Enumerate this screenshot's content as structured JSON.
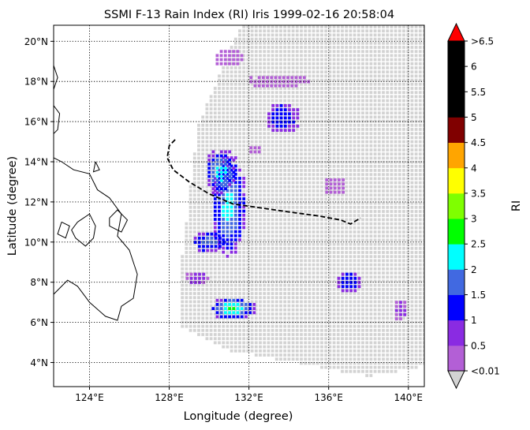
{
  "title": "SSMI F-13 Rain Index (RI) Iris 1999-02-16 20:58:04",
  "xlabel": "Longitude (degree)",
  "ylabel": "Latitude (degree)",
  "x_ticks": [
    {
      "v": 124,
      "label": "124°E"
    },
    {
      "v": 128,
      "label": "128°E"
    },
    {
      "v": 132,
      "label": "132°E"
    },
    {
      "v": 136,
      "label": "136°E"
    },
    {
      "v": 140,
      "label": "140°E"
    }
  ],
  "y_ticks": [
    {
      "v": 4,
      "label": "4°N"
    },
    {
      "v": 6,
      "label": "6°N"
    },
    {
      "v": 8,
      "label": "8°N"
    },
    {
      "v": 10,
      "label": "10°N"
    },
    {
      "v": 12,
      "label": "12°N"
    },
    {
      "v": 14,
      "label": "14°N"
    },
    {
      "v": 16,
      "label": "16°N"
    },
    {
      "v": 18,
      "label": "18°N"
    },
    {
      "v": 20,
      "label": "20°N"
    }
  ],
  "colorbar": {
    "label": "RI",
    "under_color": "#d3d3d3",
    "over_color": "#ff0000",
    "bins": [
      {
        "color": "#b35fd6"
      },
      {
        "color": "#8a2be2"
      },
      {
        "color": "#0000ff"
      },
      {
        "color": "#4169e1"
      },
      {
        "color": "#00ffff"
      },
      {
        "color": "#00ff00"
      },
      {
        "color": "#7fff00"
      },
      {
        "color": "#ffff00"
      },
      {
        "color": "#ffa500"
      },
      {
        "color": "#800000"
      },
      {
        "color": "#000000"
      },
      {
        "color": "#000000"
      },
      {
        "color": "#000000"
      }
    ],
    "tick_labels": [
      "<0.01",
      "0.5",
      "1",
      "1.5",
      "2",
      "2.5",
      "3",
      "3.5",
      "4",
      "4.5",
      "5",
      "5.5",
      "6",
      ">6.5"
    ]
  },
  "chart_data": {
    "type": "heatmap",
    "title": "SSMI F-13 Rain Index (RI) Iris 1999-02-16 20:58:04",
    "xlabel": "Longitude (degree)",
    "ylabel": "Latitude (degree)",
    "xlim": [
      122.2,
      140.8
    ],
    "ylim": [
      2.8,
      20.8
    ],
    "grid": true,
    "swath": {
      "fill_color": "#d3d3d3",
      "corners": [
        [
          132.0,
          20.8
        ],
        [
          140.8,
          20.8
        ],
        [
          140.8,
          3.8
        ],
        [
          138.0,
          3.3
        ],
        [
          131.0,
          4.6
        ],
        [
          128.6,
          5.8
        ],
        [
          128.5,
          7.9
        ],
        [
          129.2,
          14.0
        ],
        [
          129.5,
          16.0
        ],
        [
          131.6,
          20.8
        ]
      ]
    },
    "rain_cells": [
      {
        "lon": 131.2,
        "lat": 6.7,
        "rx": 1.2,
        "ry": 0.6,
        "levels": [
          "#8a2be2",
          "#0000ff",
          "#4169e1",
          "#00ffff",
          "#00ff00"
        ]
      },
      {
        "lon": 131.0,
        "lat": 11.8,
        "rx": 0.9,
        "ry": 2.6,
        "levels": [
          "#8a2be2",
          "#0000ff",
          "#4169e1",
          "#00ffff"
        ]
      },
      {
        "lon": 130.6,
        "lat": 13.5,
        "rx": 0.8,
        "ry": 1.2,
        "levels": [
          "#8a2be2",
          "#0000ff",
          "#4169e1",
          "#00ffff"
        ]
      },
      {
        "lon": 130.0,
        "lat": 10.0,
        "rx": 0.9,
        "ry": 0.6,
        "levels": [
          "#8a2be2",
          "#0000ff",
          "#4169e1"
        ]
      },
      {
        "lon": 133.7,
        "lat": 16.2,
        "rx": 0.9,
        "ry": 0.8,
        "levels": [
          "#8a2be2",
          "#0000ff"
        ]
      },
      {
        "lon": 137.0,
        "lat": 8.0,
        "rx": 0.7,
        "ry": 0.6,
        "levels": [
          "#8a2be2",
          "#0000ff"
        ]
      },
      {
        "lon": 129.4,
        "lat": 8.2,
        "rx": 0.7,
        "ry": 0.4,
        "levels": [
          "#b35fd6",
          "#8a2be2"
        ]
      },
      {
        "lon": 133.5,
        "lat": 18.0,
        "rx": 1.6,
        "ry": 0.4,
        "levels": [
          "#b35fd6"
        ]
      },
      {
        "lon": 131.0,
        "lat": 19.2,
        "rx": 0.8,
        "ry": 0.5,
        "levels": [
          "#b35fd6"
        ]
      },
      {
        "lon": 139.6,
        "lat": 6.6,
        "rx": 0.4,
        "ry": 0.6,
        "levels": [
          "#b35fd6",
          "#8a2be2"
        ]
      },
      {
        "lon": 136.3,
        "lat": 12.8,
        "rx": 0.6,
        "ry": 0.5,
        "levels": [
          "#b35fd6"
        ]
      },
      {
        "lon": 132.3,
        "lat": 14.6,
        "rx": 0.4,
        "ry": 0.3,
        "levels": [
          "#b35fd6"
        ]
      }
    ],
    "track": [
      [
        128.3,
        15.1
      ],
      [
        128.0,
        14.8
      ],
      [
        127.9,
        14.2
      ],
      [
        128.2,
        13.6
      ],
      [
        129.0,
        13.0
      ],
      [
        130.0,
        12.4
      ],
      [
        131.2,
        11.9
      ],
      [
        132.6,
        11.7
      ],
      [
        134.0,
        11.5
      ],
      [
        135.5,
        11.3
      ],
      [
        136.6,
        11.1
      ],
      [
        137.1,
        10.9
      ],
      [
        137.6,
        11.2
      ]
    ],
    "coastline_segments": [
      [
        [
          122.2,
          14.2
        ],
        [
          122.6,
          14.0
        ],
        [
          123.2,
          13.6
        ],
        [
          124.0,
          13.4
        ],
        [
          124.4,
          12.6
        ],
        [
          125.0,
          12.2
        ],
        [
          125.6,
          11.4
        ],
        [
          125.4,
          10.3
        ],
        [
          126.0,
          9.6
        ],
        [
          126.4,
          8.4
        ],
        [
          126.2,
          7.2
        ],
        [
          125.6,
          6.8
        ],
        [
          125.4,
          6.1
        ],
        [
          124.8,
          6.3
        ],
        [
          124.0,
          7.0
        ],
        [
          123.4,
          7.8
        ],
        [
          122.9,
          8.1
        ],
        [
          122.2,
          7.4
        ]
      ],
      [
        [
          123.4,
          11.0
        ],
        [
          124.0,
          11.4
        ],
        [
          124.3,
          10.8
        ],
        [
          124.2,
          10.2
        ],
        [
          123.8,
          9.8
        ],
        [
          123.3,
          10.2
        ],
        [
          123.1,
          10.6
        ],
        [
          123.4,
          11.0
        ]
      ],
      [
        [
          122.6,
          11.0
        ],
        [
          123.0,
          10.8
        ],
        [
          122.8,
          10.2
        ],
        [
          122.4,
          10.4
        ],
        [
          122.6,
          11.0
        ]
      ],
      [
        [
          125.0,
          11.2
        ],
        [
          125.4,
          11.6
        ],
        [
          125.9,
          11.1
        ],
        [
          125.6,
          10.5
        ],
        [
          125.0,
          10.8
        ],
        [
          125.0,
          11.2
        ]
      ],
      [
        [
          122.2,
          16.8
        ],
        [
          122.5,
          16.4
        ],
        [
          122.4,
          15.6
        ],
        [
          122.2,
          15.4
        ]
      ],
      [
        [
          122.2,
          18.8
        ],
        [
          122.4,
          18.2
        ],
        [
          122.2,
          17.6
        ]
      ],
      [
        [
          124.3,
          14.0
        ],
        [
          124.5,
          13.6
        ],
        [
          124.2,
          13.5
        ],
        [
          124.3,
          14.0
        ]
      ]
    ]
  }
}
